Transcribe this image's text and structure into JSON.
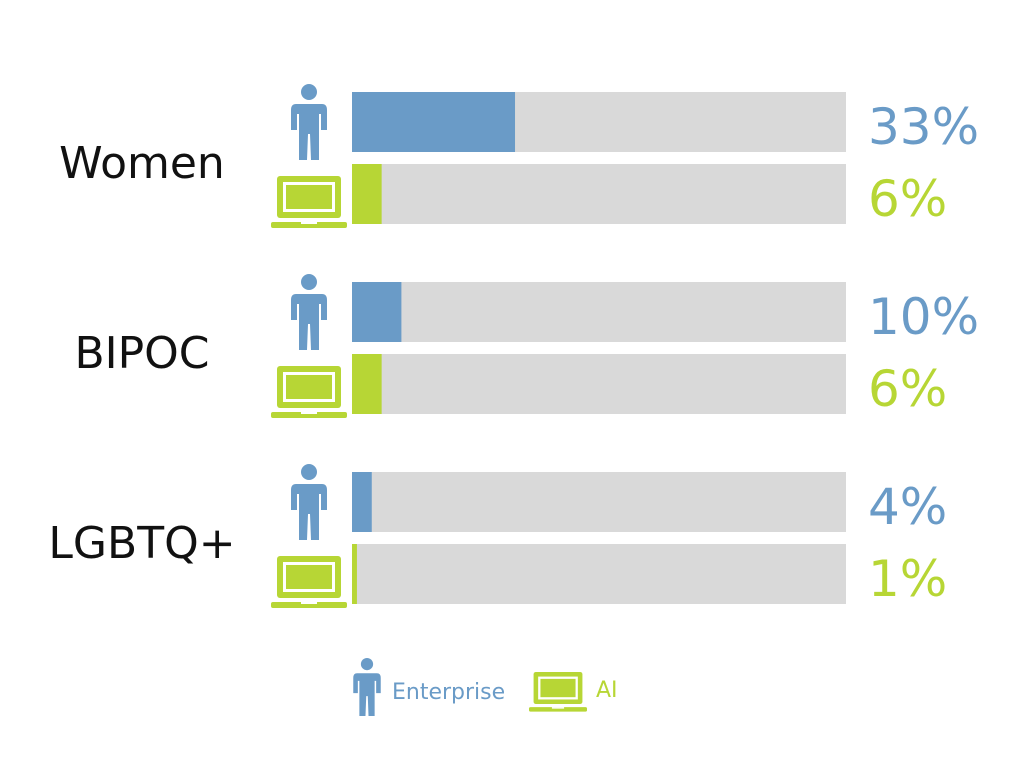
{
  "colors": {
    "enterprise": "#6a9bc7",
    "ai": "#b7d635",
    "track": "#d9d9d9",
    "text": "#111111"
  },
  "chart_data": {
    "type": "bar",
    "orientation": "horizontal",
    "xlim": [
      0,
      100
    ],
    "grid": false,
    "legend_position": "bottom",
    "categories": [
      "Women",
      "BIPOC",
      "LGBTQ+"
    ],
    "series": [
      {
        "name": "Enterprise",
        "icon": "person-icon",
        "values": [
          33,
          10,
          4
        ],
        "labels": [
          "33%",
          "10%",
          "4%"
        ]
      },
      {
        "name": "AI",
        "icon": "laptop-icon",
        "values": [
          6,
          6,
          1
        ],
        "labels": [
          "6%",
          "6%",
          "1%"
        ]
      }
    ]
  }
}
